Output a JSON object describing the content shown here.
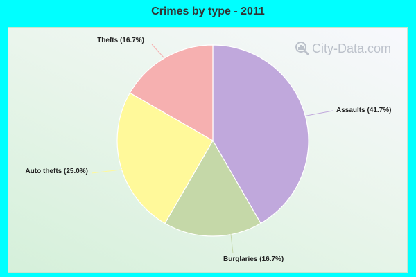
{
  "chart_data": {
    "type": "pie",
    "title": "Crimes by type - 2011",
    "slices": [
      {
        "label": "Assaults (41.7%)",
        "category": "Assaults",
        "value": 41.7,
        "color": "#c0a8dc"
      },
      {
        "label": "Burglaries (16.7%)",
        "category": "Burglaries",
        "value": 16.7,
        "color": "#c5d8a8"
      },
      {
        "label": "Auto thefts (25.0%)",
        "category": "Auto thefts",
        "value": 25.0,
        "color": "#fff99a"
      },
      {
        "label": "Thefts (16.7%)",
        "category": "Thefts",
        "value": 16.7,
        "color": "#f6b0b0"
      }
    ]
  },
  "watermark": {
    "text": "City-Data.com",
    "icon": "magnifier-icon"
  }
}
